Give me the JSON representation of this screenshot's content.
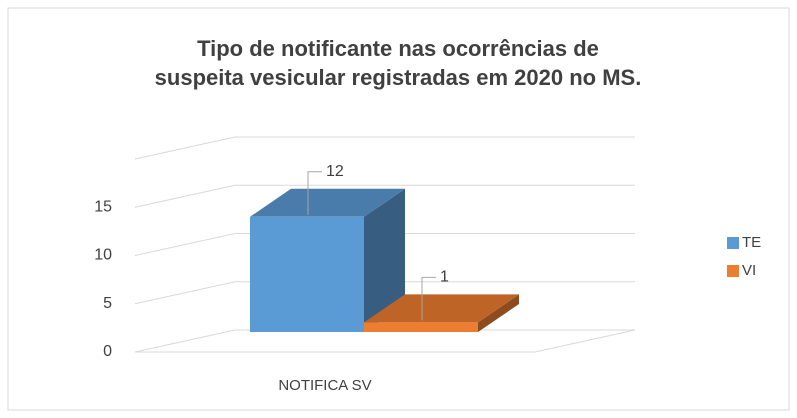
{
  "chart_data": {
    "type": "bar3d",
    "title": [
      "Tipo de notificante nas ocorrências de",
      "suspeita vesicular registradas em 2020 no MS."
    ],
    "categories": [
      "NOTIFICA SV"
    ],
    "series": [
      {
        "name": "TE",
        "color": "#5b9bd5",
        "values": [
          12
        ]
      },
      {
        "name": "VI",
        "color": "#ed7d31",
        "values": [
          1
        ]
      }
    ],
    "ylim": [
      0,
      20
    ],
    "yticks": [
      0,
      5,
      10,
      15
    ],
    "grid": true,
    "legend": "right"
  }
}
